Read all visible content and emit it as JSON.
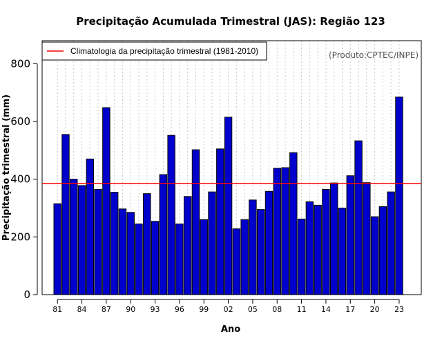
{
  "chart_data": {
    "type": "bar",
    "title": "Precipitação Acumulada Trimestral (JAS): Região 123",
    "xlabel": "Ano",
    "ylabel": "Precipitação trimestral (mm)",
    "credit": "(Produto:CPTEC/INPE)",
    "legend": {
      "label": "Climatologia da precipitação trimestral (1981-2010)",
      "color": "#ff0000",
      "placement": "top-left"
    },
    "climatology": 385,
    "ylim": [
      0,
      880
    ],
    "yticks": [
      0,
      200,
      400,
      600,
      800
    ],
    "bar_color": "#0000cc",
    "categories": [
      "81",
      "82",
      "83",
      "84",
      "85",
      "86",
      "87",
      "88",
      "89",
      "90",
      "91",
      "92",
      "93",
      "94",
      "95",
      "96",
      "97",
      "98",
      "99",
      "00",
      "01",
      "02",
      "03",
      "04",
      "05",
      "06",
      "07",
      "08",
      "09",
      "10",
      "11",
      "12",
      "13",
      "14",
      "15",
      "16",
      "17",
      "18",
      "19",
      "20",
      "21",
      "22",
      "23"
    ],
    "values": [
      315,
      555,
      400,
      378,
      470,
      365,
      648,
      355,
      297,
      285,
      245,
      350,
      254,
      416,
      552,
      245,
      340,
      502,
      260,
      356,
      505,
      615,
      228,
      260,
      328,
      295,
      358,
      438,
      440,
      492,
      262,
      322,
      310,
      365,
      387,
      300,
      412,
      533,
      388,
      270,
      305,
      356,
      685
    ],
    "xtick_labels": [
      "81",
      "84",
      "87",
      "90",
      "93",
      "96",
      "99",
      "02",
      "05",
      "08",
      "11",
      "14",
      "17",
      "20",
      "23"
    ]
  }
}
